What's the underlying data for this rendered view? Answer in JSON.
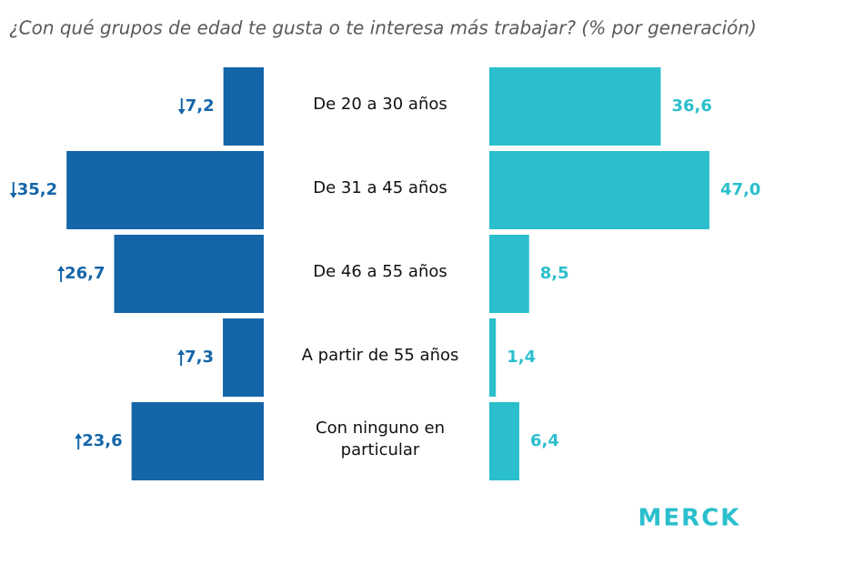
{
  "chart_data": {
    "type": "butterfly-bar",
    "title": "¿Con qué grupos de edad te gusta o te interesa más trabajar? (% por generación)",
    "categories": [
      "De 20 a 30 años",
      "De 31 a 45 años",
      "De 46 a 55 años",
      "A partir de 55 años",
      "Con ninguno en particular"
    ],
    "series": [
      {
        "color": "#1565a9",
        "side": "left",
        "values": [
          7.2,
          35.2,
          26.7,
          7.3,
          23.6
        ],
        "value_labels": [
          "7,2",
          "35,2",
          "26,7",
          "7,3",
          "23,6"
        ],
        "arrows": [
          "down",
          "down",
          "up",
          "up",
          "up"
        ]
      },
      {
        "color": "#2bbfcd",
        "side": "right",
        "values": [
          36.6,
          47.0,
          8.5,
          1.4,
          6.4
        ],
        "value_labels": [
          "36,6",
          "47,0",
          "8,5",
          "1,4",
          "6,4"
        ]
      }
    ],
    "logo": "MERCK"
  }
}
